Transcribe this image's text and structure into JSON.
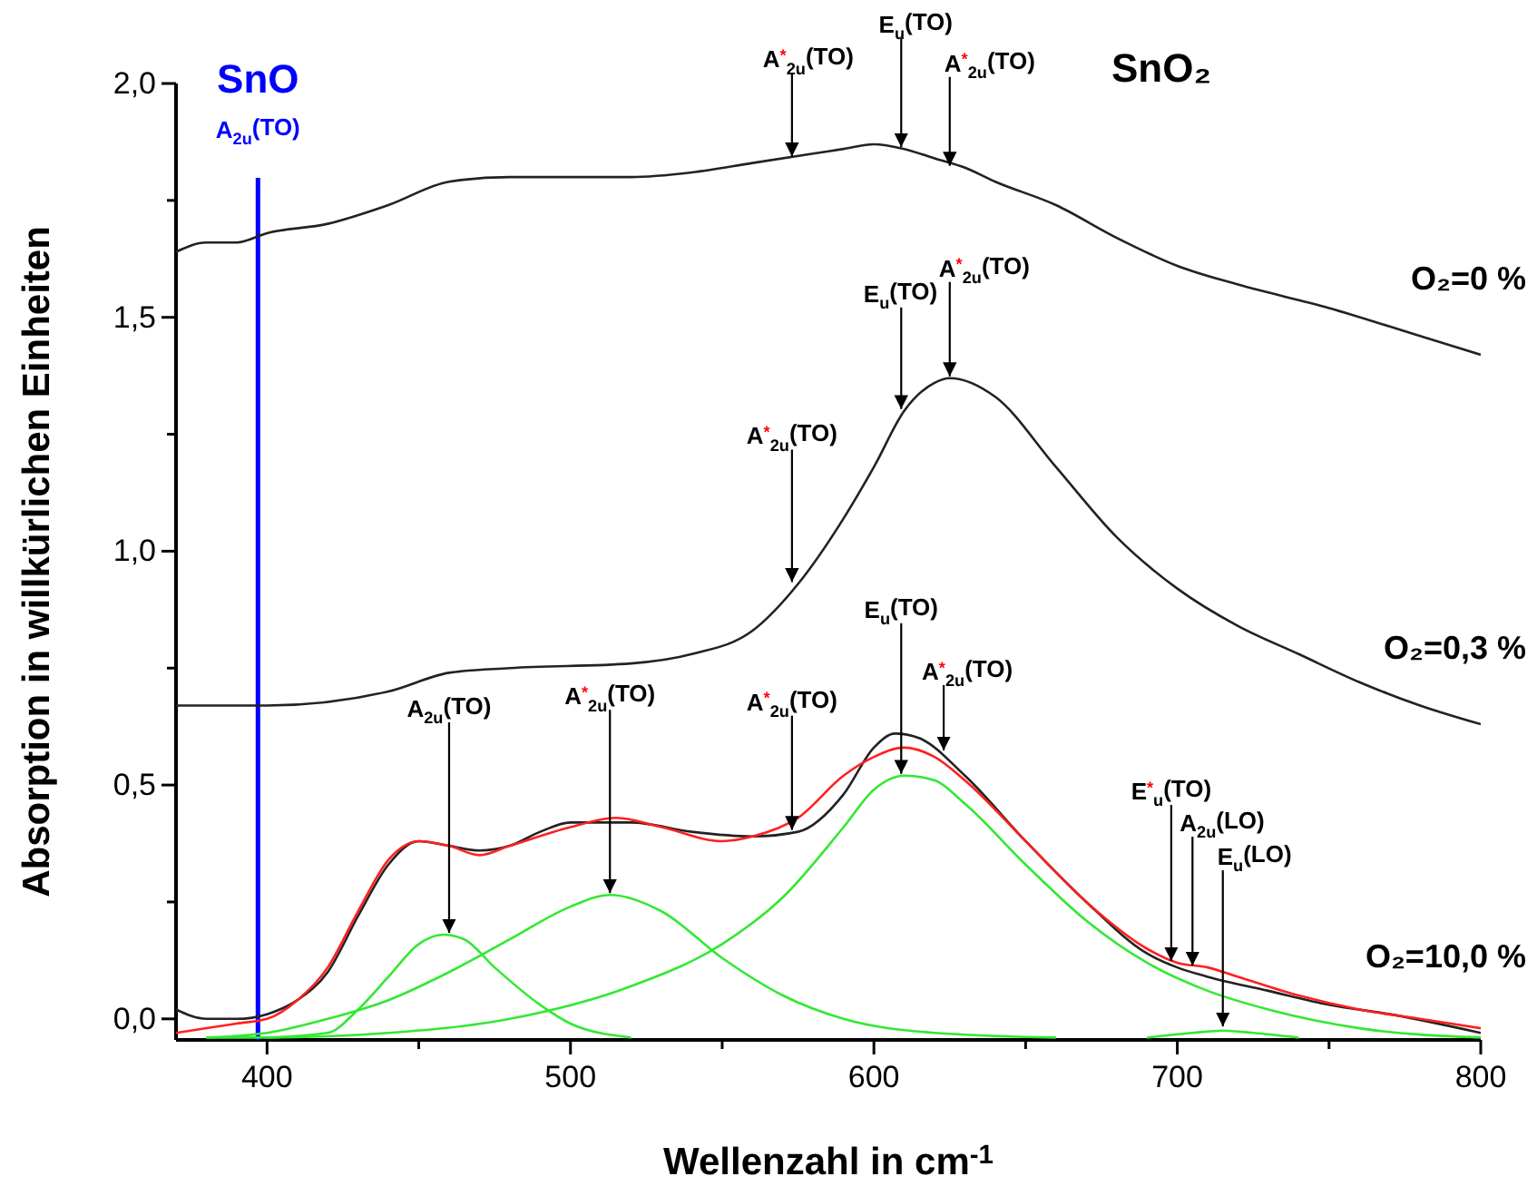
{
  "chart_data": {
    "type": "line",
    "xlabel": "Wellenzahl in cm$^{-1}$",
    "ylabel": "Absorption in willkürlichen Einheiten",
    "xlim": [
      370,
      800
    ],
    "ylim": [
      -0.045,
      2.0
    ],
    "xticks": [
      400,
      {
        "value": 450,
        "label": null
      },
      500,
      {
        "value": 550,
        "label": null
      },
      600,
      {
        "value": 650,
        "label": null
      },
      700,
      {
        "value": 750,
        "label": null
      },
      800
    ],
    "yticks": [
      {
        "value": 0,
        "label": "0,0"
      },
      {
        "value": 0.25,
        "label": null
      },
      {
        "value": 0.5,
        "label": "0,5"
      },
      {
        "value": 0.75,
        "label": null
      },
      {
        "value": 1,
        "label": "1,0"
      },
      {
        "value": 1.25,
        "label": null
      },
      {
        "value": 1.5,
        "label": "1,5"
      },
      {
        "value": 1.75,
        "label": null
      },
      {
        "value": 2,
        "label": "2,0"
      }
    ],
    "grid": false,
    "legend": false,
    "marker": "none",
    "line_style": "solid",
    "series": [
      {
        "name": "O₂=0 %",
        "color": "#222222",
        "x": [
          370,
          380,
          390,
          400,
          420,
          440,
          460,
          480,
          500,
          520,
          540,
          560,
          580,
          590,
          600,
          610,
          620,
          630,
          640,
          660,
          680,
          700,
          720,
          750,
          780,
          800
        ],
        "values": [
          1.64,
          1.66,
          1.66,
          1.68,
          1.7,
          1.74,
          1.79,
          1.8,
          1.8,
          1.8,
          1.81,
          1.83,
          1.85,
          1.86,
          1.87,
          1.86,
          1.84,
          1.82,
          1.79,
          1.74,
          1.67,
          1.61,
          1.57,
          1.52,
          1.46,
          1.42
        ]
      },
      {
        "name": "O₂=0,3 %",
        "color": "#222222",
        "x": [
          370,
          400,
          440,
          460,
          480,
          520,
          540,
          560,
          575,
          590,
          600,
          610,
          620,
          625,
          640,
          660,
          680,
          700,
          720,
          740,
          760,
          780,
          800
        ],
        "values": [
          0.67,
          0.67,
          0.7,
          0.74,
          0.75,
          0.76,
          0.78,
          0.83,
          0.93,
          1.07,
          1.18,
          1.3,
          1.36,
          1.37,
          1.33,
          1.18,
          1.03,
          0.92,
          0.84,
          0.78,
          0.72,
          0.67,
          0.63
        ]
      },
      {
        "name": "O₂=10,0 %",
        "color": "#222222",
        "x": [
          370,
          380,
          390,
          400,
          410,
          420,
          430,
          440,
          450,
          460,
          470,
          480,
          490,
          500,
          520,
          540,
          560,
          575,
          590,
          600,
          607,
          615,
          630,
          650,
          670,
          690,
          700,
          710,
          730,
          750,
          770,
          800
        ],
        "values": [
          0.02,
          0.0,
          0.0,
          0.01,
          0.04,
          0.1,
          0.22,
          0.33,
          0.38,
          0.37,
          0.36,
          0.37,
          0.4,
          0.42,
          0.42,
          0.4,
          0.39,
          0.4,
          0.48,
          0.58,
          0.61,
          0.6,
          0.52,
          0.38,
          0.25,
          0.14,
          0.11,
          0.09,
          0.06,
          0.03,
          0.01,
          -0.03
        ]
      },
      {
        "color": "#ff2020",
        "x": [
          370,
          390,
          400,
          410,
          420,
          430,
          440,
          450,
          460,
          470,
          480,
          500,
          515,
          530,
          550,
          560,
          575,
          590,
          600,
          610,
          620,
          630,
          650,
          670,
          690,
          700,
          710,
          720,
          740,
          760,
          780,
          800
        ],
        "values": [
          -0.03,
          -0.01,
          0.0,
          0.04,
          0.11,
          0.23,
          0.34,
          0.38,
          0.37,
          0.35,
          0.37,
          0.41,
          0.43,
          0.41,
          0.38,
          0.39,
          0.43,
          0.52,
          0.56,
          0.58,
          0.56,
          0.51,
          0.38,
          0.25,
          0.15,
          0.12,
          0.11,
          0.09,
          0.05,
          0.02,
          0.0,
          -0.02
        ]
      },
      {
        "color": "#33e833",
        "x": [
          400,
          420,
          430,
          440,
          450,
          458,
          465,
          475,
          490,
          500,
          520
        ],
        "values": [
          -0.04,
          -0.03,
          0.02,
          0.09,
          0.16,
          0.18,
          0.17,
          0.11,
          0.03,
          -0.01,
          -0.04
        ]
      },
      {
        "color": "#33e833",
        "x": [
          380,
          400,
          420,
          440,
          460,
          480,
          500,
          513,
          530,
          550,
          570,
          590,
          620,
          660
        ],
        "values": [
          -0.04,
          -0.03,
          0.0,
          0.04,
          0.1,
          0.17,
          0.24,
          0.265,
          0.23,
          0.13,
          0.05,
          0.0,
          -0.03,
          -0.04
        ]
      },
      {
        "color": "#33e833",
        "x": [
          380,
          400,
          440,
          480,
          520,
          550,
          570,
          590,
          600,
          610,
          620,
          630,
          650,
          670,
          690,
          710,
          730,
          760,
          800
        ],
        "values": [
          -0.04,
          -0.04,
          -0.03,
          0.0,
          0.07,
          0.16,
          0.26,
          0.41,
          0.49,
          0.52,
          0.51,
          0.46,
          0.33,
          0.21,
          0.12,
          0.06,
          0.02,
          -0.02,
          -0.04
        ]
      },
      {
        "color": "#33e833",
        "x": [
          690,
          705,
          715,
          725,
          740
        ],
        "values": [
          -0.04,
          -0.03,
          -0.025,
          -0.03,
          -0.04
        ]
      }
    ],
    "ref_lines": [
      {
        "axis": "x",
        "value": 397,
        "label": "A$_{2u}$(TO)",
        "color": "#0000ff"
      }
    ],
    "annotations": [
      "SnO",
      "SnO₂",
      {
        "text": "A$^{*}$$_{2u}$(TO)",
        "x": 573,
        "y": 1.84
      },
      {
        "text": "E$_{u}$(TO)",
        "x": 609,
        "y": 1.86
      },
      {
        "text": "A$^{*}$$_{2u}$(TO)",
        "x": 625,
        "y": 1.82
      },
      {
        "text": "A$^{*}$$_{2u}$(TO)",
        "x": 573,
        "y": 0.93
      },
      {
        "text": "E$_{u}$(TO)",
        "x": 609,
        "y": 1.3
      },
      {
        "text": "A$^{*}$$_{2u}$(TO)",
        "x": 625,
        "y": 1.37
      },
      {
        "text": "A$_{2u}$(TO)",
        "x": 460,
        "y": 0.18
      },
      {
        "text": "A$^{*}$$_{2u}$(TO)",
        "x": 513,
        "y": 0.265
      },
      {
        "text": "A$^{*}$$_{2u}$(TO)",
        "x": 573,
        "y": 0.4
      },
      {
        "text": "E$_{u}$(TO)",
        "x": 609,
        "y": 0.52
      },
      {
        "text": "A$^{*}$$_{2u}$(TO)",
        "x": 623,
        "y": 0.57
      },
      {
        "text": "E$^{*}$$_{u}$(TO)",
        "x": 698,
        "y": 0.12
      },
      {
        "text": "A$_{2u}$(LO)",
        "x": 705,
        "y": 0.11
      },
      {
        "text": "E$_{u}$(LO)",
        "x": 715,
        "y": -0.02
      }
    ]
  }
}
